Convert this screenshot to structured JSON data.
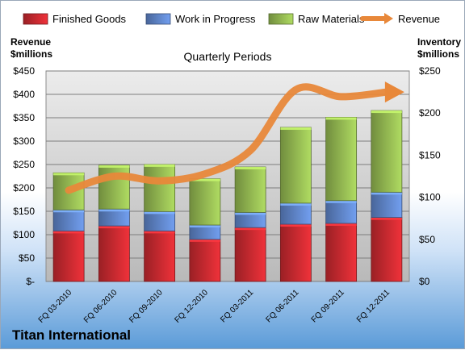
{
  "brand_label": "Titan International",
  "chart_data": {
    "type": "bar",
    "subtype": "stacked bar with line overlay (dual axis)",
    "title": "Quarterly Periods",
    "ylabel_left": "Revenue\n$millions",
    "ylabel_right": "Inventory\n$millions",
    "categories": [
      "FQ 03-2010",
      "FQ 06-2010",
      "FQ 09-2010",
      "FQ 12-2010",
      "FQ 03-2011",
      "FQ 06-2011",
      "FQ 09-2011",
      "FQ 12-2011"
    ],
    "ylim_left": [
      0,
      450
    ],
    "yticks_left": [
      "$-",
      "$50",
      "$100",
      "$150",
      "$200",
      "$250",
      "$300",
      "$350",
      "$400",
      "$450"
    ],
    "ylim_right": [
      0,
      250
    ],
    "yticks_right": [
      "$0",
      "$50",
      "$100",
      "$150",
      "$200",
      "$250"
    ],
    "series": [
      {
        "name": "Finished Goods",
        "axis": "right",
        "color": "#c0282e",
        "values": [
          60,
          66,
          60,
          50,
          64,
          68,
          69,
          76
        ]
      },
      {
        "name": "Work in Progress",
        "axis": "right",
        "color": "#5b7fc0",
        "values": [
          25,
          20,
          23,
          17,
          18,
          25,
          27,
          30
        ]
      },
      {
        "name": "Raw Materials",
        "axis": "right",
        "color": "#8db04e",
        "values": [
          44,
          52,
          56,
          55,
          54,
          90,
          99,
          97
        ]
      },
      {
        "name": "Revenue",
        "axis": "left",
        "type": "line",
        "color": "#e8883a",
        "values": [
          195,
          225,
          215,
          230,
          280,
          410,
          395,
          405
        ]
      }
    ],
    "grid": true,
    "legend": "top"
  }
}
